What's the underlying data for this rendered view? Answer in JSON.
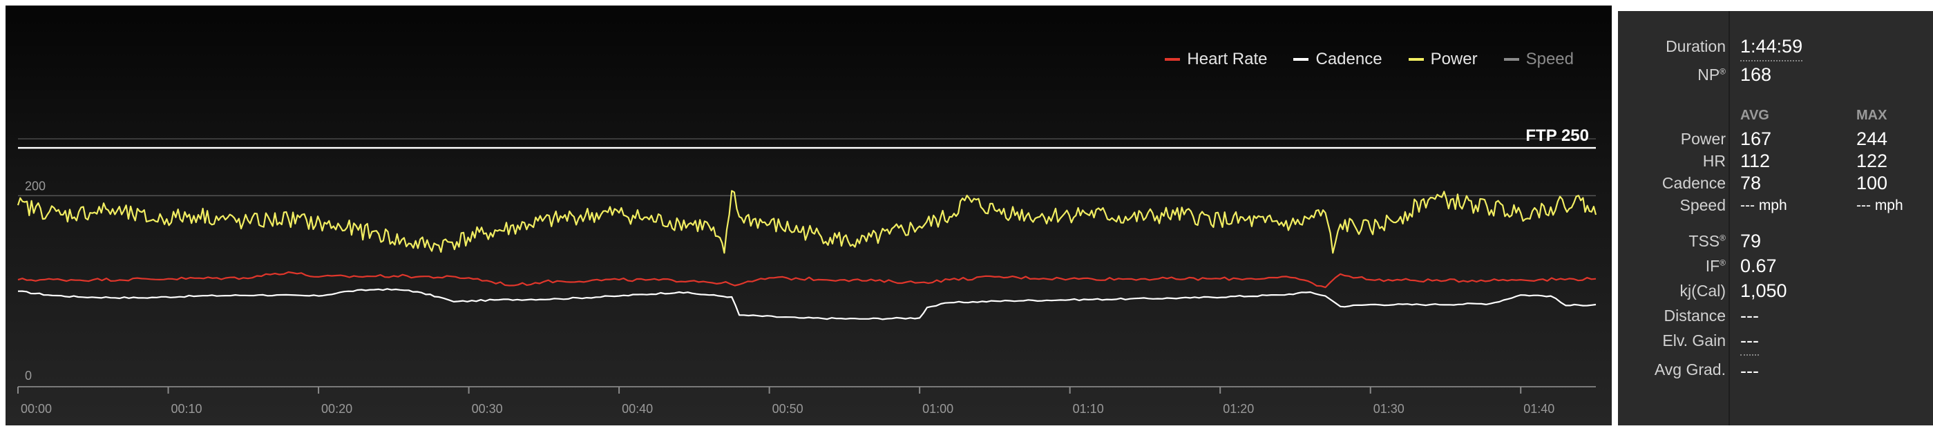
{
  "legend": [
    {
      "name": "Heart Rate",
      "color": "#e0362b"
    },
    {
      "name": "Cadence",
      "color": "#ffffff"
    },
    {
      "name": "Power",
      "color": "#f2ee62"
    },
    {
      "name": "Speed",
      "color": "#8a8a8a"
    }
  ],
  "ftp_label": "FTP 250",
  "stats": {
    "duration_label": "Duration",
    "duration_value": "1:44:59",
    "np_label": "NP",
    "np_mark": "®",
    "np_value": "168",
    "avg_header": "AVG",
    "max_header": "MAX",
    "rows": [
      {
        "label": "Power",
        "avg": "167",
        "max": "244"
      },
      {
        "label": "HR",
        "avg": "112",
        "max": "122"
      },
      {
        "label": "Cadence",
        "avg": "78",
        "max": "100"
      },
      {
        "label": "Speed",
        "avg": "--- mph",
        "max": "--- mph"
      }
    ],
    "tss_label": "TSS",
    "tss_mark": "®",
    "tss_value": "79",
    "if_label": "IF",
    "if_mark": "®",
    "if_value": "0.67",
    "kj_label": "kj(Cal)",
    "kj_value": "1,050",
    "distance_label": "Distance",
    "distance_value": "---",
    "elv_label": "Elv. Gain",
    "elv_value": "---",
    "grad_label": "Avg Grad.",
    "grad_value": "---"
  },
  "chart_data": {
    "type": "line",
    "x_unit": "minutes",
    "x_range": [
      0,
      105
    ],
    "x_ticks": [
      0,
      10,
      20,
      30,
      40,
      50,
      60,
      70,
      80,
      90,
      100
    ],
    "x_tick_labels": [
      "00:00",
      "00:10",
      "00:20",
      "00:30",
      "00:40",
      "00:50",
      "01:00",
      "01:10",
      "01:20",
      "01:30",
      "01:40"
    ],
    "y_range": [
      0,
      300
    ],
    "y_tick_labels": [
      {
        "value": 200,
        "label": "200"
      },
      {
        "value": 0,
        "label": "0"
      }
    ],
    "ftp_line": 250,
    "grid": true,
    "legend_position": "top-right",
    "series": [
      {
        "name": "Power",
        "color": "#f2ee62",
        "x": [
          0,
          3,
          6,
          9,
          12,
          15,
          18,
          21,
          24,
          26,
          28,
          31,
          34,
          37,
          40,
          42,
          44,
          46,
          47,
          47.5,
          48,
          50,
          53,
          56,
          58,
          60,
          62,
          63,
          65,
          68,
          71,
          74,
          77,
          80,
          83,
          85,
          87,
          87.5,
          88,
          90,
          92,
          94,
          97,
          100,
          102,
          104,
          105
        ],
        "y": [
          190,
          180,
          185,
          175,
          180,
          172,
          176,
          168,
          160,
          150,
          148,
          160,
          170,
          178,
          182,
          175,
          172,
          168,
          140,
          205,
          178,
          170,
          160,
          150,
          160,
          168,
          178,
          195,
          185,
          178,
          182,
          176,
          180,
          175,
          172,
          170,
          182,
          140,
          170,
          165,
          178,
          198,
          190,
          182,
          188,
          195,
          180
        ]
      },
      {
        "name": "Heart Rate",
        "color": "#e0362b",
        "x": [
          0,
          5,
          10,
          15,
          18,
          20,
          25,
          30,
          33,
          35,
          40,
          45,
          48,
          50,
          55,
          60,
          62,
          65,
          70,
          75,
          80,
          85,
          87,
          88,
          90,
          95,
          100,
          105
        ],
        "y": [
          112,
          112,
          113,
          114,
          120,
          115,
          116,
          114,
          106,
          110,
          112,
          111,
          107,
          114,
          112,
          109,
          112,
          115,
          113,
          113,
          113,
          114,
          104,
          118,
          112,
          111,
          112,
          113
        ]
      },
      {
        "name": "Cadence",
        "color": "#ffffff",
        "x": [
          0,
          2,
          4,
          8,
          12,
          16,
          20,
          22,
          24,
          26,
          28,
          29,
          32,
          36,
          40,
          44,
          46,
          47.5,
          48,
          52,
          56,
          60,
          60.5,
          62,
          66,
          70,
          74,
          78,
          84,
          86,
          87,
          88,
          90,
          94,
          98,
          100,
          102,
          103,
          105
        ],
        "y": [
          100,
          96,
          94,
          93,
          95,
          96,
          95,
          100,
          102,
          101,
          94,
          89,
          91,
          92,
          95,
          99,
          96,
          94,
          75,
          72,
          71,
          72,
          83,
          88,
          90,
          91,
          92,
          93,
          96,
          99,
          95,
          84,
          86,
          86,
          87,
          96,
          95,
          85,
          86
        ]
      },
      {
        "name": "Speed",
        "color": "#8a8a8a",
        "x": [],
        "y": []
      }
    ]
  }
}
